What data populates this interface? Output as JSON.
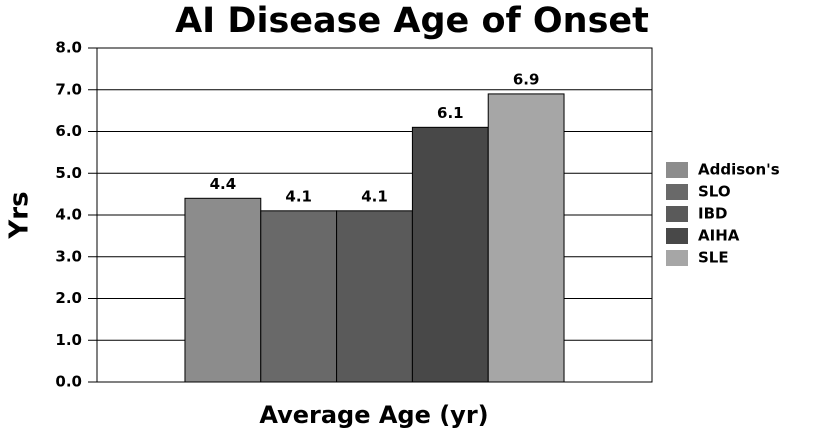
{
  "chart_data": {
    "type": "bar",
    "title": "AI Disease Age of Onset",
    "x_label": "Average Age (yr)",
    "y_label": "Yrs",
    "categories": [
      null
    ],
    "series": [
      {
        "name": "Addison's",
        "color": "#8c8c8c",
        "values": [
          4.4
        ]
      },
      {
        "name": "SLO",
        "color": "#696969",
        "values": [
          4.1
        ]
      },
      {
        "name": "IBD",
        "color": "#5a5a5a",
        "values": [
          4.1
        ]
      },
      {
        "name": "AIHA",
        "color": "#484848",
        "values": [
          6.1
        ]
      },
      {
        "name": "SLE",
        "color": "#a6a6a6",
        "values": [
          6.9
        ]
      }
    ],
    "ylim": [
      0,
      8
    ],
    "yticks": [
      {
        "value": 0,
        "label": "0.0"
      },
      {
        "value": 1,
        "label": "1.0"
      },
      {
        "value": 2,
        "label": "2.0"
      },
      {
        "value": 3,
        "label": "3.0"
      },
      {
        "value": 4,
        "label": "4.0"
      },
      {
        "value": 5,
        "label": "5.0"
      },
      {
        "value": 6,
        "label": "6.0"
      },
      {
        "value": 7,
        "label": "7.0"
      },
      {
        "value": 8,
        "label": "8.0"
      }
    ],
    "grid": true,
    "legend": "right"
  }
}
